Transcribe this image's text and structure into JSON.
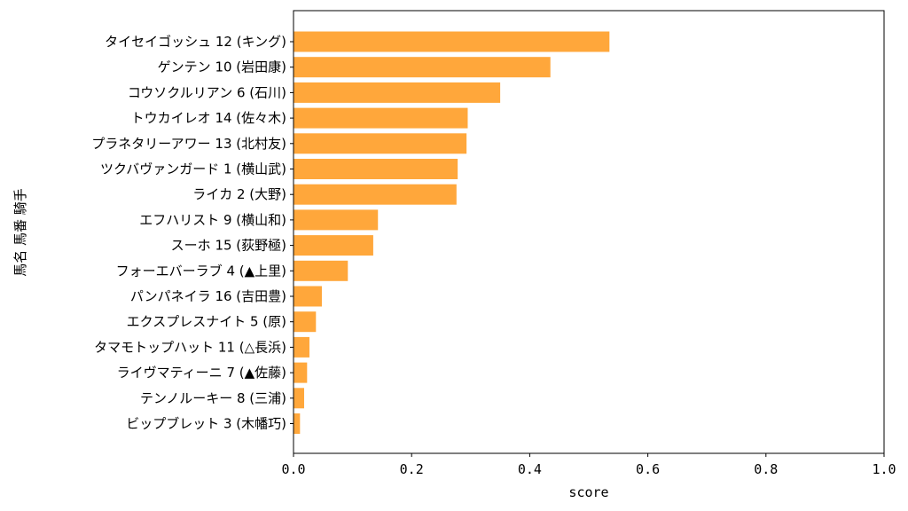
{
  "chart_data": {
    "type": "bar",
    "orientation": "horizontal",
    "categories": [
      "タイセイゴッシュ 12 (キング)",
      "ゲンテン 10 (岩田康)",
      "コウソクルリアン 6 (石川)",
      "トウカイレオ 14 (佐々木)",
      "プラネタリーアワー 13 (北村友)",
      "ツクバヴァンガード 1 (横山武)",
      "ライカ 2 (大野)",
      "エフハリスト 9 (横山和)",
      "スーホ 15 (荻野極)",
      "フォーエバーラブ 4 (▲上里)",
      "パンパネイラ 16 (吉田豊)",
      "エクスプレスナイト 5 (原)",
      "タマモトップハット 11 (△長浜)",
      "ライヴマティーニ 7 (▲佐藤)",
      "テンノルーキー 8 (三浦)",
      "ビップブレット 3 (木幡巧)"
    ],
    "values": [
      0.535,
      0.435,
      0.35,
      0.295,
      0.293,
      0.278,
      0.276,
      0.143,
      0.135,
      0.092,
      0.048,
      0.038,
      0.027,
      0.023,
      0.018,
      0.011
    ],
    "xlabel": "score",
    "ylabel": "馬名 馬番 騎手",
    "xlim": [
      0.0,
      1.0
    ],
    "xticks": [
      "0.0",
      "0.2",
      "0.4",
      "0.6",
      "0.8",
      "1.0"
    ],
    "bar_color": "#ffa230",
    "grid": false
  }
}
